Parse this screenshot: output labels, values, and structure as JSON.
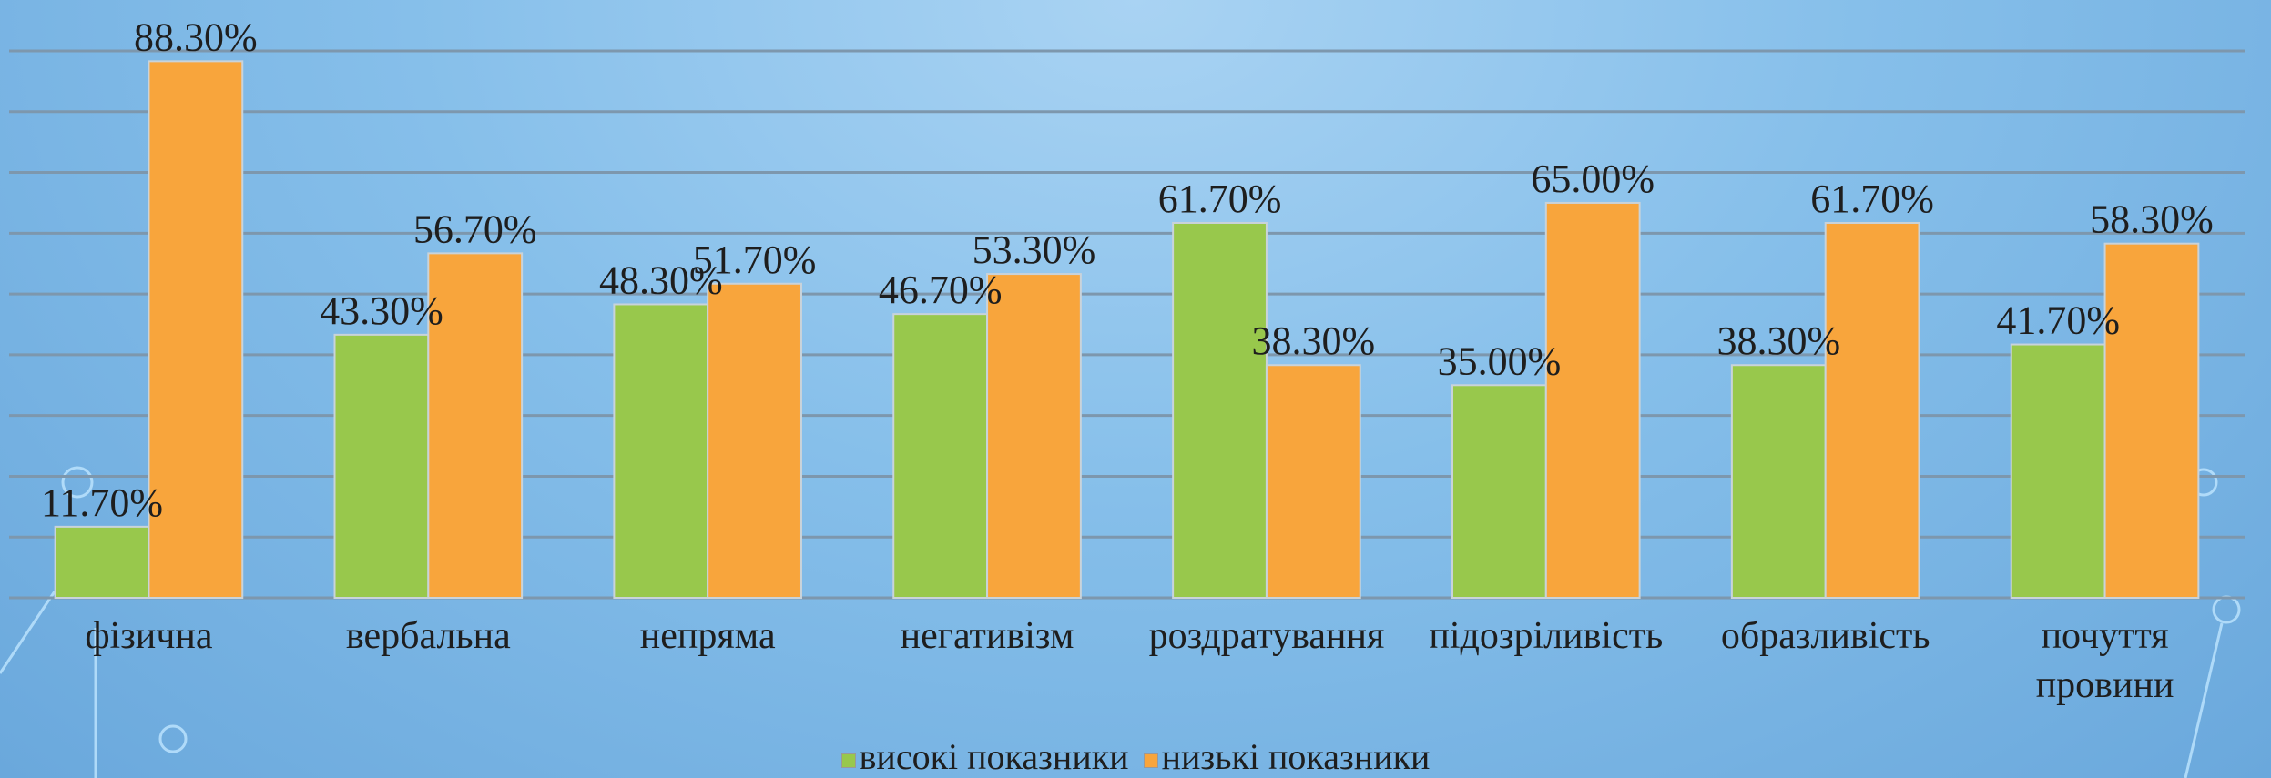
{
  "chart_data": {
    "type": "bar",
    "categories": [
      "фізична",
      "вербальна",
      "непряма",
      "негативізм",
      "роздратування",
      "підозріливість",
      "образливість",
      "почуття провини"
    ],
    "series": [
      {
        "name": "високі показники",
        "color": "#98c84c",
        "values": [
          11.7,
          43.3,
          48.3,
          46.7,
          61.7,
          35.0,
          38.3,
          41.7
        ],
        "value_labels": [
          "11.70%",
          "43.30%",
          "48.30%",
          "46.70%",
          "61.70%",
          "35.00%",
          "38.30%",
          "41.70%"
        ]
      },
      {
        "name": "низькі показники",
        "color": "#f8a53c",
        "values": [
          88.3,
          56.7,
          51.7,
          53.3,
          38.3,
          65.0,
          61.7,
          58.3
        ],
        "value_labels": [
          "88.30%",
          "56.70%",
          "51.70%",
          "53.30%",
          "38.30%",
          "65.00%",
          "61.70%",
          "58.30%"
        ]
      }
    ],
    "ylim": [
      0,
      90
    ],
    "yticks": [
      0,
      10,
      20,
      30,
      40,
      50,
      60,
      70,
      80,
      90
    ],
    "grid": true,
    "legend": "bottom"
  }
}
